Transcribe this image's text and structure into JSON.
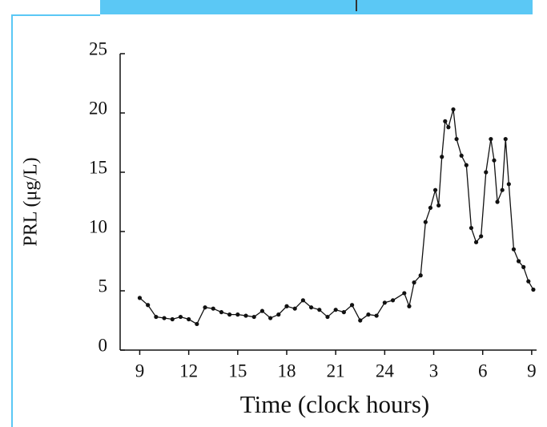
{
  "chart_data": {
    "type": "line",
    "x_label": "Time (clock hours)",
    "y_label": "PRL (μg/L)",
    "x": [
      9,
      9.5,
      10,
      10.5,
      11,
      11.5,
      12,
      12.5,
      13,
      13.5,
      14,
      14.5,
      15,
      15.5,
      16,
      16.5,
      17,
      17.5,
      18,
      18.5,
      19,
      19.5,
      20,
      20.5,
      21,
      21.5,
      22,
      22.5,
      23,
      23.5,
      24,
      24.5,
      25.2,
      25.5,
      25.8,
      26.2,
      26.5,
      26.8,
      27.1,
      27.3,
      27.5,
      27.7,
      27.9,
      28.2,
      28.4,
      28.7,
      29.0,
      29.3,
      29.6,
      29.9,
      30.2,
      30.5,
      30.7,
      30.9,
      31.2,
      31.4,
      31.6,
      31.9,
      32.2,
      32.5,
      32.8,
      33.1
    ],
    "values": [
      4.4,
      3.8,
      2.8,
      2.7,
      2.6,
      2.8,
      2.6,
      2.2,
      3.6,
      3.5,
      3.2,
      3.0,
      3.0,
      2.9,
      2.8,
      3.3,
      2.7,
      3.0,
      3.7,
      3.5,
      4.2,
      3.6,
      3.4,
      2.8,
      3.4,
      3.2,
      3.8,
      2.5,
      3.0,
      2.9,
      4.0,
      4.2,
      4.8,
      3.7,
      5.7,
      6.3,
      10.8,
      12.0,
      13.5,
      12.2,
      16.3,
      19.3,
      18.8,
      20.3,
      17.8,
      16.4,
      15.6,
      10.3,
      9.1,
      9.6,
      15.0,
      17.8,
      16.0,
      12.5,
      13.5,
      17.8,
      14.0,
      8.5,
      7.5,
      7.0,
      5.8,
      5.1
    ],
    "color": "#111111",
    "xlim": [
      7.8,
      33.3
    ],
    "xticks": [
      9,
      12,
      15,
      18,
      21,
      24,
      {
        "value": 27,
        "label": "3"
      },
      {
        "value": 30,
        "label": "6"
      },
      {
        "value": 33,
        "label": "9"
      }
    ],
    "ylim": [
      0,
      25
    ],
    "yticks": [
      0,
      5,
      10,
      15,
      20,
      25
    ],
    "grid": false
  }
}
